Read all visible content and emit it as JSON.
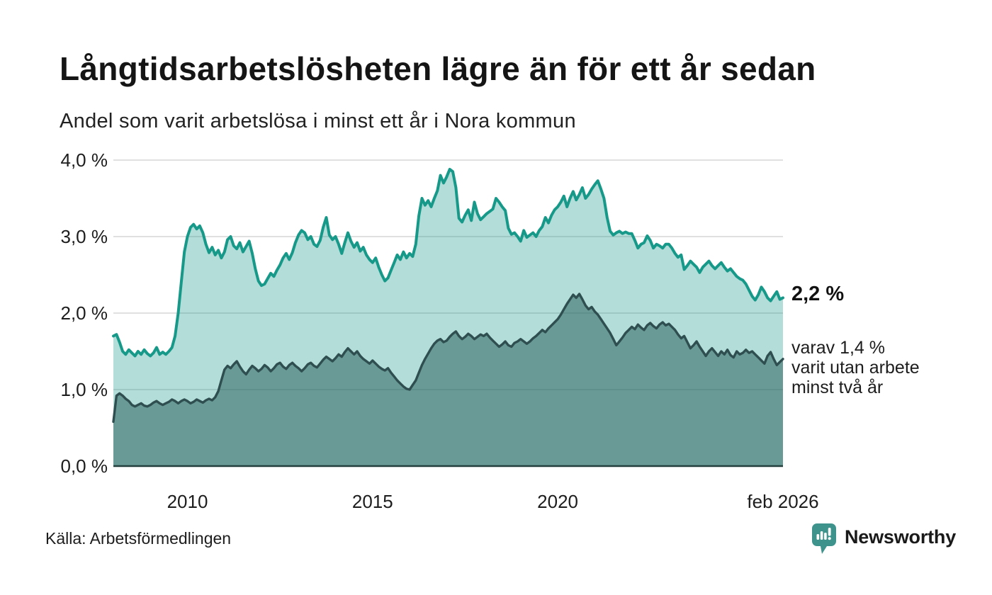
{
  "header": {
    "title": "Långtidsarbetslösheten lägre än för ett år sedan",
    "subtitle": "Andel som varit arbetslösa i minst ett år i Nora kommun"
  },
  "annotations": {
    "latest_total": "2,2 %",
    "breakdown": "varav 1,4 %\nvarit utan arbete\nminst två år"
  },
  "footer": {
    "source": "Källa: Arbetsförmedlingen",
    "logo": {
      "text": "Newsworthy",
      "icon": "newsworthy-chart-bubble-icon",
      "color": "#3e948c"
    }
  },
  "colors": {
    "series1_line": "#17998a",
    "series1_fill": "rgba(23,153,138,0.33)",
    "series2_line": "#2e4e50",
    "series2_fill": "rgba(43,99,95,0.55)",
    "grid": "#d6d6d6",
    "axis_baseline": "#24403e",
    "text": "#1a1a1a"
  },
  "chart_data": {
    "type": "area",
    "title": "Långtidsarbetslösheten lägre än för ett år sedan",
    "subtitle": "Andel som varit arbetslösa i minst ett år i Nora kommun",
    "source": "Källa: Arbetsförmedlingen",
    "grid": true,
    "legend_position": "none",
    "x_axis": {
      "frequency": "monthly",
      "start": "2008-01",
      "end": "2026-02",
      "range": [
        2008.0,
        2026.083
      ],
      "ticks": [
        {
          "label": "2010",
          "t": 2010.0
        },
        {
          "label": "2015",
          "t": 2015.0
        },
        {
          "label": "2020",
          "t": 2020.0
        },
        {
          "label": "feb 2026",
          "t": 2026.083
        }
      ]
    },
    "y_axis": {
      "range": [
        0,
        4
      ],
      "unit": "%",
      "ticks": [
        {
          "label": "0,0 %",
          "value": 0
        },
        {
          "label": "1,0 %",
          "value": 1
        },
        {
          "label": "2,0 %",
          "value": 2
        },
        {
          "label": "3,0 %",
          "value": 3
        },
        {
          "label": "4,0 %",
          "value": 4
        }
      ]
    },
    "series": [
      {
        "name": "Andel arbetslösa minst ett år",
        "end_label": "2,2 %",
        "latest_value": 2.2,
        "line_color": "#17998a",
        "fill_color": "rgba(23,153,138,0.33)",
        "values": [
          1.7,
          1.72,
          1.62,
          1.5,
          1.46,
          1.52,
          1.48,
          1.44,
          1.5,
          1.46,
          1.52,
          1.47,
          1.44,
          1.48,
          1.55,
          1.46,
          1.49,
          1.46,
          1.5,
          1.55,
          1.7,
          2.0,
          2.4,
          2.8,
          3.0,
          3.12,
          3.16,
          3.1,
          3.14,
          3.05,
          2.9,
          2.79,
          2.86,
          2.76,
          2.82,
          2.72,
          2.8,
          2.96,
          3.0,
          2.88,
          2.84,
          2.92,
          2.8,
          2.87,
          2.94,
          2.78,
          2.58,
          2.42,
          2.36,
          2.38,
          2.45,
          2.52,
          2.48,
          2.56,
          2.63,
          2.72,
          2.78,
          2.7,
          2.79,
          2.92,
          3.02,
          3.08,
          3.05,
          2.96,
          3.0,
          2.9,
          2.87,
          2.95,
          3.12,
          3.25,
          3.02,
          2.96,
          3.0,
          2.9,
          2.78,
          2.92,
          3.05,
          2.94,
          2.86,
          2.92,
          2.81,
          2.86,
          2.76,
          2.7,
          2.66,
          2.72,
          2.6,
          2.5,
          2.42,
          2.46,
          2.56,
          2.66,
          2.76,
          2.7,
          2.8,
          2.72,
          2.78,
          2.74,
          2.9,
          3.27,
          3.5,
          3.41,
          3.47,
          3.39,
          3.5,
          3.6,
          3.8,
          3.7,
          3.78,
          3.88,
          3.85,
          3.64,
          3.24,
          3.19,
          3.28,
          3.35,
          3.21,
          3.45,
          3.3,
          3.22,
          3.26,
          3.3,
          3.33,
          3.36,
          3.5,
          3.45,
          3.39,
          3.34,
          3.11,
          3.03,
          3.05,
          3.0,
          2.94,
          3.08,
          2.99,
          3.02,
          3.05,
          3.0,
          3.08,
          3.13,
          3.25,
          3.18,
          3.28,
          3.35,
          3.39,
          3.45,
          3.53,
          3.39,
          3.5,
          3.59,
          3.48,
          3.55,
          3.64,
          3.5,
          3.55,
          3.62,
          3.68,
          3.73,
          3.62,
          3.5,
          3.25,
          3.07,
          3.02,
          3.05,
          3.07,
          3.04,
          3.06,
          3.04,
          3.04,
          2.95,
          2.85,
          2.9,
          2.92,
          3.01,
          2.95,
          2.85,
          2.9,
          2.88,
          2.85,
          2.9,
          2.9,
          2.85,
          2.78,
          2.73,
          2.76,
          2.57,
          2.62,
          2.68,
          2.64,
          2.6,
          2.53,
          2.6,
          2.64,
          2.68,
          2.62,
          2.58,
          2.62,
          2.66,
          2.6,
          2.55,
          2.58,
          2.53,
          2.48,
          2.45,
          2.43,
          2.38,
          2.3,
          2.22,
          2.17,
          2.24,
          2.34,
          2.28,
          2.2,
          2.16,
          2.22,
          2.28,
          2.18,
          2.2
        ]
      },
      {
        "name": "Andel utan arbete minst två år",
        "end_label": "1,4 %",
        "latest_value": 1.4,
        "line_color": "#2e4e50",
        "fill_color": "rgba(43,99,95,0.55)",
        "values": [
          0.58,
          0.92,
          0.95,
          0.92,
          0.88,
          0.85,
          0.8,
          0.78,
          0.8,
          0.82,
          0.79,
          0.78,
          0.8,
          0.83,
          0.85,
          0.82,
          0.8,
          0.82,
          0.84,
          0.87,
          0.85,
          0.82,
          0.85,
          0.87,
          0.85,
          0.82,
          0.84,
          0.87,
          0.85,
          0.83,
          0.86,
          0.88,
          0.86,
          0.9,
          0.98,
          1.12,
          1.26,
          1.31,
          1.28,
          1.33,
          1.37,
          1.3,
          1.24,
          1.2,
          1.26,
          1.31,
          1.28,
          1.24,
          1.27,
          1.32,
          1.29,
          1.24,
          1.28,
          1.33,
          1.35,
          1.3,
          1.27,
          1.32,
          1.35,
          1.31,
          1.28,
          1.24,
          1.28,
          1.33,
          1.35,
          1.31,
          1.29,
          1.34,
          1.39,
          1.43,
          1.4,
          1.37,
          1.41,
          1.46,
          1.43,
          1.49,
          1.54,
          1.5,
          1.46,
          1.5,
          1.44,
          1.4,
          1.37,
          1.34,
          1.38,
          1.34,
          1.3,
          1.27,
          1.25,
          1.28,
          1.22,
          1.17,
          1.12,
          1.08,
          1.04,
          1.01,
          1.0,
          1.06,
          1.12,
          1.22,
          1.32,
          1.4,
          1.47,
          1.54,
          1.6,
          1.64,
          1.66,
          1.62,
          1.64,
          1.69,
          1.73,
          1.76,
          1.7,
          1.66,
          1.69,
          1.73,
          1.7,
          1.66,
          1.69,
          1.72,
          1.7,
          1.73,
          1.68,
          1.64,
          1.6,
          1.56,
          1.59,
          1.63,
          1.58,
          1.56,
          1.61,
          1.63,
          1.66,
          1.63,
          1.6,
          1.63,
          1.67,
          1.7,
          1.74,
          1.78,
          1.75,
          1.8,
          1.84,
          1.88,
          1.92,
          1.98,
          2.05,
          2.12,
          2.18,
          2.24,
          2.2,
          2.25,
          2.18,
          2.1,
          2.05,
          2.08,
          2.02,
          1.98,
          1.92,
          1.86,
          1.8,
          1.74,
          1.66,
          1.58,
          1.63,
          1.68,
          1.74,
          1.78,
          1.82,
          1.79,
          1.85,
          1.81,
          1.78,
          1.84,
          1.87,
          1.83,
          1.8,
          1.85,
          1.88,
          1.84,
          1.86,
          1.82,
          1.78,
          1.72,
          1.67,
          1.7,
          1.62,
          1.54,
          1.58,
          1.63,
          1.56,
          1.5,
          1.44,
          1.5,
          1.54,
          1.49,
          1.44,
          1.5,
          1.46,
          1.52,
          1.45,
          1.42,
          1.5,
          1.46,
          1.48,
          1.52,
          1.48,
          1.5,
          1.46,
          1.42,
          1.38,
          1.34,
          1.44,
          1.49,
          1.4,
          1.32,
          1.36,
          1.4
        ]
      }
    ]
  }
}
